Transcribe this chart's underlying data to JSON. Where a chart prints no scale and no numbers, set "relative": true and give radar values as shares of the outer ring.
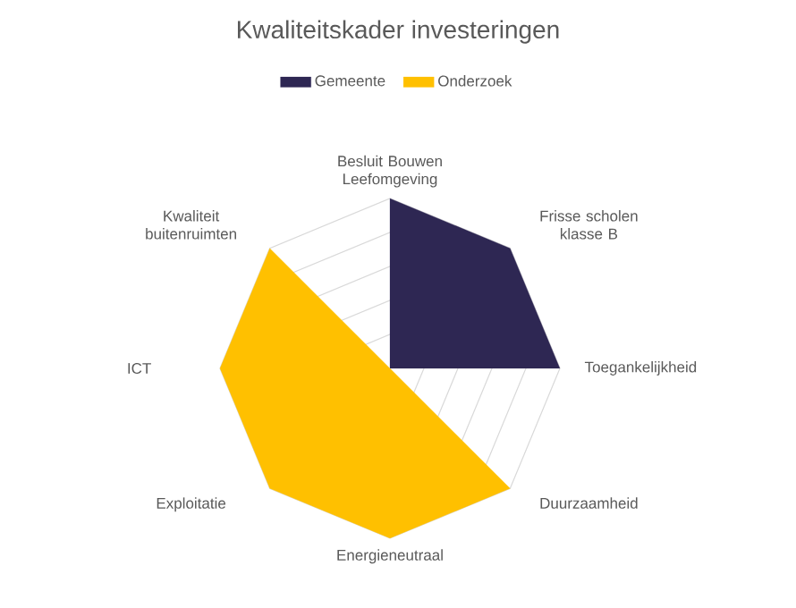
{
  "chart_data": {
    "type": "radar",
    "title": "Kwaliteitskader investeringen",
    "categories": [
      "Besluit Bouwen Leefomgeving",
      "Frisse scholen klasse B",
      "Toegankelijkheid",
      "Duurzaamheid",
      "Energieneutraal",
      "Exploitatie",
      "ICT",
      "Kwaliteit buitenruimten"
    ],
    "series": [
      {
        "name": "Gemeente",
        "color": "#2e2753",
        "values": [
          1,
          1,
          1,
          0,
          0,
          0,
          0,
          0
        ]
      },
      {
        "name": "Onderzoek",
        "color": "#ffc000",
        "values": [
          0,
          0,
          0,
          1,
          1,
          1,
          1,
          1
        ]
      }
    ],
    "relative": true,
    "grid": true,
    "legend": "top"
  }
}
